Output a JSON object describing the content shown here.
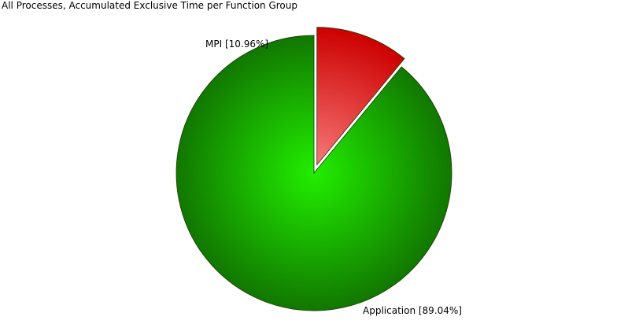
{
  "chart_data": {
    "type": "pie",
    "title": "All Processes, Accumulated Exclusive Time per Function Group",
    "slices": [
      {
        "label": "MPI [10.96%]",
        "value": 10.96,
        "color_inner": "#f87878",
        "color_outer": "#cc0000"
      },
      {
        "label": "Application [89.04%]",
        "value": 89.04,
        "color_inner": "#22ee00",
        "color_outer": "#117700"
      }
    ]
  }
}
